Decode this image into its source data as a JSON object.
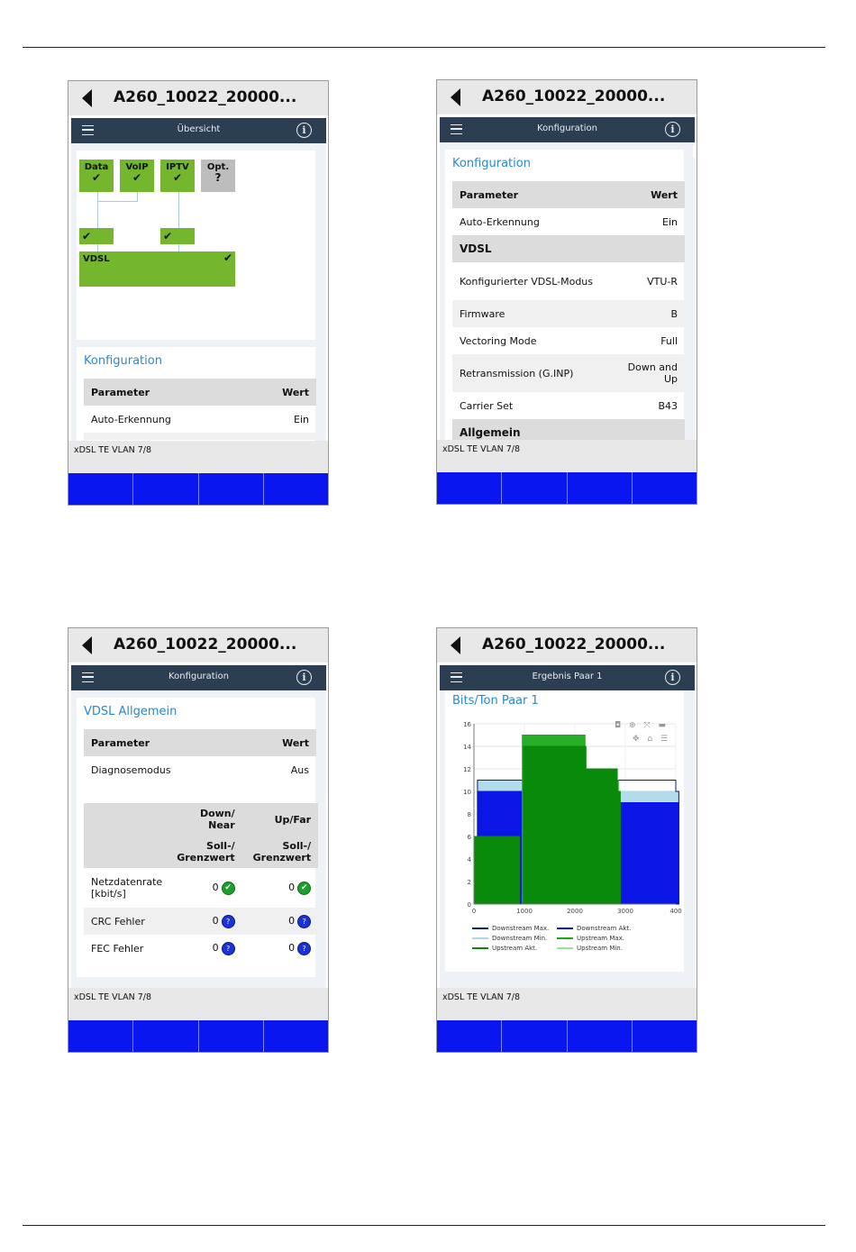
{
  "screens": [
    {
      "title": "A260_10022_20000...",
      "app_title": "Übersicht",
      "services": [
        {
          "label": "Data",
          "mark": "✔"
        },
        {
          "label": "VoIP",
          "mark": "✔"
        },
        {
          "label": "IPTV",
          "mark": "✔"
        },
        {
          "label": "Opt.",
          "mark": "?"
        }
      ],
      "sub_marks": [
        "✔",
        "✔"
      ],
      "vdsl_label": "VDSL",
      "vdsl_mark": "✔",
      "section_title": "Konfiguration",
      "table_header": [
        "Parameter",
        "Wert"
      ],
      "rows": [
        [
          "Auto-Erkennung",
          "Ein"
        ]
      ],
      "status": "xDSL TE VLAN 7/8"
    },
    {
      "title": "A260_10022_20000...",
      "app_title": "Konfiguration",
      "section_title": "Konfiguration",
      "table_header": [
        "Parameter",
        "Wert"
      ],
      "rows_a": [
        [
          "Auto-Erkennung",
          "Ein"
        ]
      ],
      "section_vdsl": "VDSL",
      "rows_b": [
        [
          "Konfigurierter VDSL-Modus",
          "VTU-R"
        ],
        [
          "Firmware",
          "B"
        ],
        [
          "Vectoring Mode",
          "Full"
        ],
        [
          "Retransmission (G.INP)",
          "Down and Up"
        ],
        [
          "Carrier Set",
          "B43"
        ]
      ],
      "section_next": "Allgemein",
      "status": "xDSL TE VLAN 7/8"
    },
    {
      "title": "A260_10022_20000...",
      "app_title": "Konfiguration",
      "section_title": "VDSL Allgemein",
      "table_header": [
        "Parameter",
        "Wert"
      ],
      "rows": [
        [
          "Diagnosemodus",
          "Aus"
        ]
      ],
      "col_down": "Down/ Near",
      "col_up": "Up/Far",
      "col_target1": "Soll-/ Grenzwert",
      "col_target2": "Soll-/ Grenzwert",
      "counters": [
        {
          "label": "Netzdatenrate [kbit/s]",
          "down": "0",
          "up": "0",
          "icon": "check-icon"
        },
        {
          "label": "CRC Fehler",
          "down": "0",
          "up": "0",
          "icon": "question-icon"
        },
        {
          "label": "FEC Fehler",
          "down": "0",
          "up": "0",
          "icon": "question-icon"
        }
      ],
      "ok_glyph": "✔",
      "q_glyph": "?",
      "status": "xDSL TE VLAN 7/8"
    },
    {
      "title": "A260_10022_20000...",
      "app_title": "Ergebnis Paar 1",
      "section_title": "Bits/Ton Paar 1",
      "status": "xDSL TE VLAN 7/8"
    }
  ],
  "chart_data": {
    "type": "area",
    "title": "Bits/Ton Paar 1",
    "xlim": [
      0,
      4000
    ],
    "ylim": [
      0,
      16
    ],
    "x_ticks": [
      "0",
      "1000",
      "2000",
      "3000",
      "400"
    ],
    "y_ticks": [
      "0",
      "2",
      "4",
      "6",
      "8",
      "10",
      "12",
      "14",
      "16"
    ],
    "grid": true,
    "legend_position": "bottom",
    "series": [
      {
        "name": "Downstream Max.",
        "color": "#00208a",
        "points": [
          [
            70,
            11
          ],
          [
            960,
            11
          ],
          [
            1350,
            11
          ],
          [
            2840,
            11
          ],
          [
            4000,
            10
          ]
        ]
      },
      {
        "name": "Downstream Akt.",
        "color": "#0a16e6",
        "points": [
          [
            70,
            10
          ],
          [
            960,
            10
          ],
          [
            1350,
            10
          ],
          [
            2850,
            9
          ],
          [
            4000,
            9
          ]
        ]
      },
      {
        "name": "Downstream Min.",
        "color": "#a8d8ea",
        "points": [
          [
            70,
            11
          ],
          [
            960,
            11
          ],
          [
            1350,
            11
          ],
          [
            2840,
            10
          ],
          [
            4000,
            10
          ]
        ]
      },
      {
        "name": "Upstream Max.",
        "color": "#1aa81a",
        "points": [
          [
            960,
            15
          ],
          [
            1300,
            15
          ],
          [
            2200,
            12
          ],
          [
            2800,
            11
          ]
        ]
      },
      {
        "name": "Upstream Akt.",
        "color": "#0a8a0a",
        "points": [
          [
            0,
            6
          ],
          [
            900,
            0
          ],
          [
            980,
            14
          ],
          [
            1320,
            14
          ],
          [
            2220,
            12
          ],
          [
            2840,
            10
          ]
        ]
      },
      {
        "name": "Upstream Min.",
        "color": "#9be29b",
        "points": [
          [
            960,
            15
          ],
          [
            1300,
            15
          ],
          [
            2200,
            12
          ],
          [
            2800,
            11
          ]
        ]
      }
    ]
  }
}
